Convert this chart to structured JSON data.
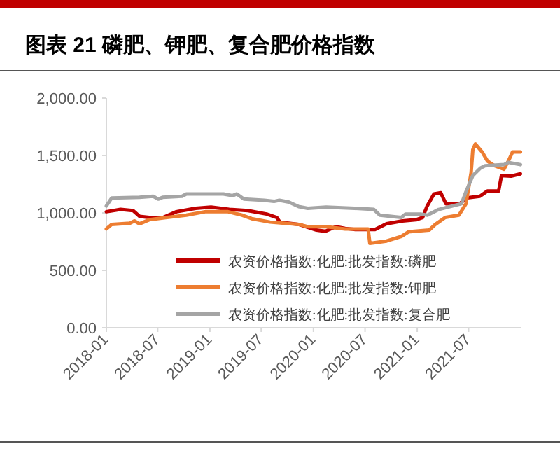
{
  "chart_data": {
    "type": "line",
    "title": "图表 21 磷肥、钾肥、复合肥价格指数",
    "legend": "bottom",
    "grid": false,
    "line_style": "solid",
    "marker": "none",
    "xlim": [
      "2018-01-01",
      "2022-01-01"
    ],
    "xticks": [
      {
        "value": "2018-01-01",
        "label": "2018-01"
      },
      {
        "value": "2018-07-01",
        "label": "2018-07"
      },
      {
        "value": "2019-01-01",
        "label": "2019-01"
      },
      {
        "value": "2019-07-01",
        "label": "2019-07"
      },
      {
        "value": "2020-01-01",
        "label": "2020-01"
      },
      {
        "value": "2020-07-01",
        "label": "2020-07"
      },
      {
        "value": "2021-01-01",
        "label": "2021-01"
      },
      {
        "value": "2021-07-01",
        "label": "2021-07"
      }
    ],
    "ylim": [
      0,
      2000
    ],
    "yticks": [
      {
        "value": 0,
        "label": "0.00"
      },
      {
        "value": 500,
        "label": "500.00"
      },
      {
        "value": 1000,
        "label": "1,000.00"
      },
      {
        "value": 1500,
        "label": "1,500.00"
      },
      {
        "value": 2000,
        "label": "2,000.00"
      }
    ],
    "series": [
      {
        "name": "农资价格指数:化肥:批发指数:磷肥",
        "color": "#c00000",
        "x": [
          "2018-01-01",
          "2018-02-20",
          "2018-04-05",
          "2018-04-28",
          "2018-06-01",
          "2018-07-20",
          "2018-09-05",
          "2018-11-12",
          "2019-01-05",
          "2019-03-10",
          "2019-05-15",
          "2019-07-20",
          "2019-08-25",
          "2019-09-05",
          "2019-11-10",
          "2020-01-12",
          "2020-02-12",
          "2020-03-20",
          "2020-04-22",
          "2020-05-28",
          "2020-08-05",
          "2020-09-15",
          "2020-11-10",
          "2020-12-28",
          "2021-01-20",
          "2021-02-05",
          "2021-03-01",
          "2021-03-25",
          "2021-04-12",
          "2021-06-01",
          "2021-06-22",
          "2021-08-10",
          "2021-09-05",
          "2021-10-15",
          "2021-10-25",
          "2021-11-28",
          "2021-12-31"
        ],
        "values": [
          1010,
          1030,
          1020,
          970,
          960,
          960,
          1010,
          1040,
          1050,
          1030,
          1020,
          990,
          960,
          920,
          900,
          850,
          840,
          880,
          865,
          855,
          855,
          905,
          930,
          940,
          960,
          1060,
          1165,
          1175,
          1080,
          1080,
          1130,
          1145,
          1190,
          1190,
          1325,
          1320,
          1340
        ]
      },
      {
        "name": "农资价格指数:化肥:批发指数:钾肥",
        "color": "#ed7d31",
        "x": [
          "2018-01-01",
          "2018-01-20",
          "2018-03-25",
          "2018-04-10",
          "2018-04-28",
          "2018-06-01",
          "2018-08-03",
          "2018-10-10",
          "2018-12-15",
          "2019-03-06",
          "2019-04-25",
          "2019-05-28",
          "2019-08-01",
          "2019-11-10",
          "2019-12-12",
          "2020-02-15",
          "2020-04-22",
          "2020-07-12",
          "2020-07-18",
          "2020-09-15",
          "2020-11-06",
          "2020-12-01",
          "2021-02-12",
          "2021-03-06",
          "2021-04-10",
          "2021-05-28",
          "2021-06-22",
          "2021-07-10",
          "2021-07-16",
          "2021-07-25",
          "2021-08-18",
          "2021-09-06",
          "2021-10-01",
          "2021-11-03",
          "2021-11-18",
          "2021-12-03",
          "2021-12-31"
        ],
        "values": [
          860,
          900,
          910,
          930,
          905,
          940,
          960,
          980,
          1010,
          1010,
          980,
          950,
          920,
          900,
          880,
          880,
          860,
          860,
          735,
          755,
          795,
          835,
          850,
          900,
          960,
          980,
          1080,
          1350,
          1550,
          1600,
          1530,
          1450,
          1410,
          1380,
          1450,
          1530,
          1530
        ]
      },
      {
        "name": "农资价格指数:化肥:批发指数:复合肥",
        "color": "#a5a5a5",
        "x": [
          "2018-01-01",
          "2018-01-20",
          "2018-04-28",
          "2018-06-15",
          "2018-07-03",
          "2018-07-18",
          "2018-09-25",
          "2018-10-10",
          "2019-02-18",
          "2019-03-22",
          "2019-04-06",
          "2019-05-01",
          "2019-07-12",
          "2019-08-15",
          "2019-09-03",
          "2019-10-06",
          "2019-11-10",
          "2019-12-12",
          "2020-02-15",
          "2020-05-25",
          "2020-08-01",
          "2020-08-22",
          "2020-10-18",
          "2020-11-06",
          "2020-11-21",
          "2021-01-12",
          "2021-02-06",
          "2021-03-18",
          "2021-06-06",
          "2021-06-22",
          "2021-07-16",
          "2021-08-12",
          "2021-08-28",
          "2021-11-03",
          "2021-11-18",
          "2021-12-31"
        ],
        "values": [
          1060,
          1130,
          1135,
          1145,
          1120,
          1135,
          1145,
          1165,
          1165,
          1150,
          1165,
          1120,
          1110,
          1100,
          1110,
          1095,
          1055,
          1040,
          1050,
          1040,
          1030,
          980,
          965,
          960,
          990,
          990,
          980,
          1030,
          1080,
          1185,
          1325,
          1390,
          1410,
          1420,
          1440,
          1420
        ]
      }
    ]
  }
}
